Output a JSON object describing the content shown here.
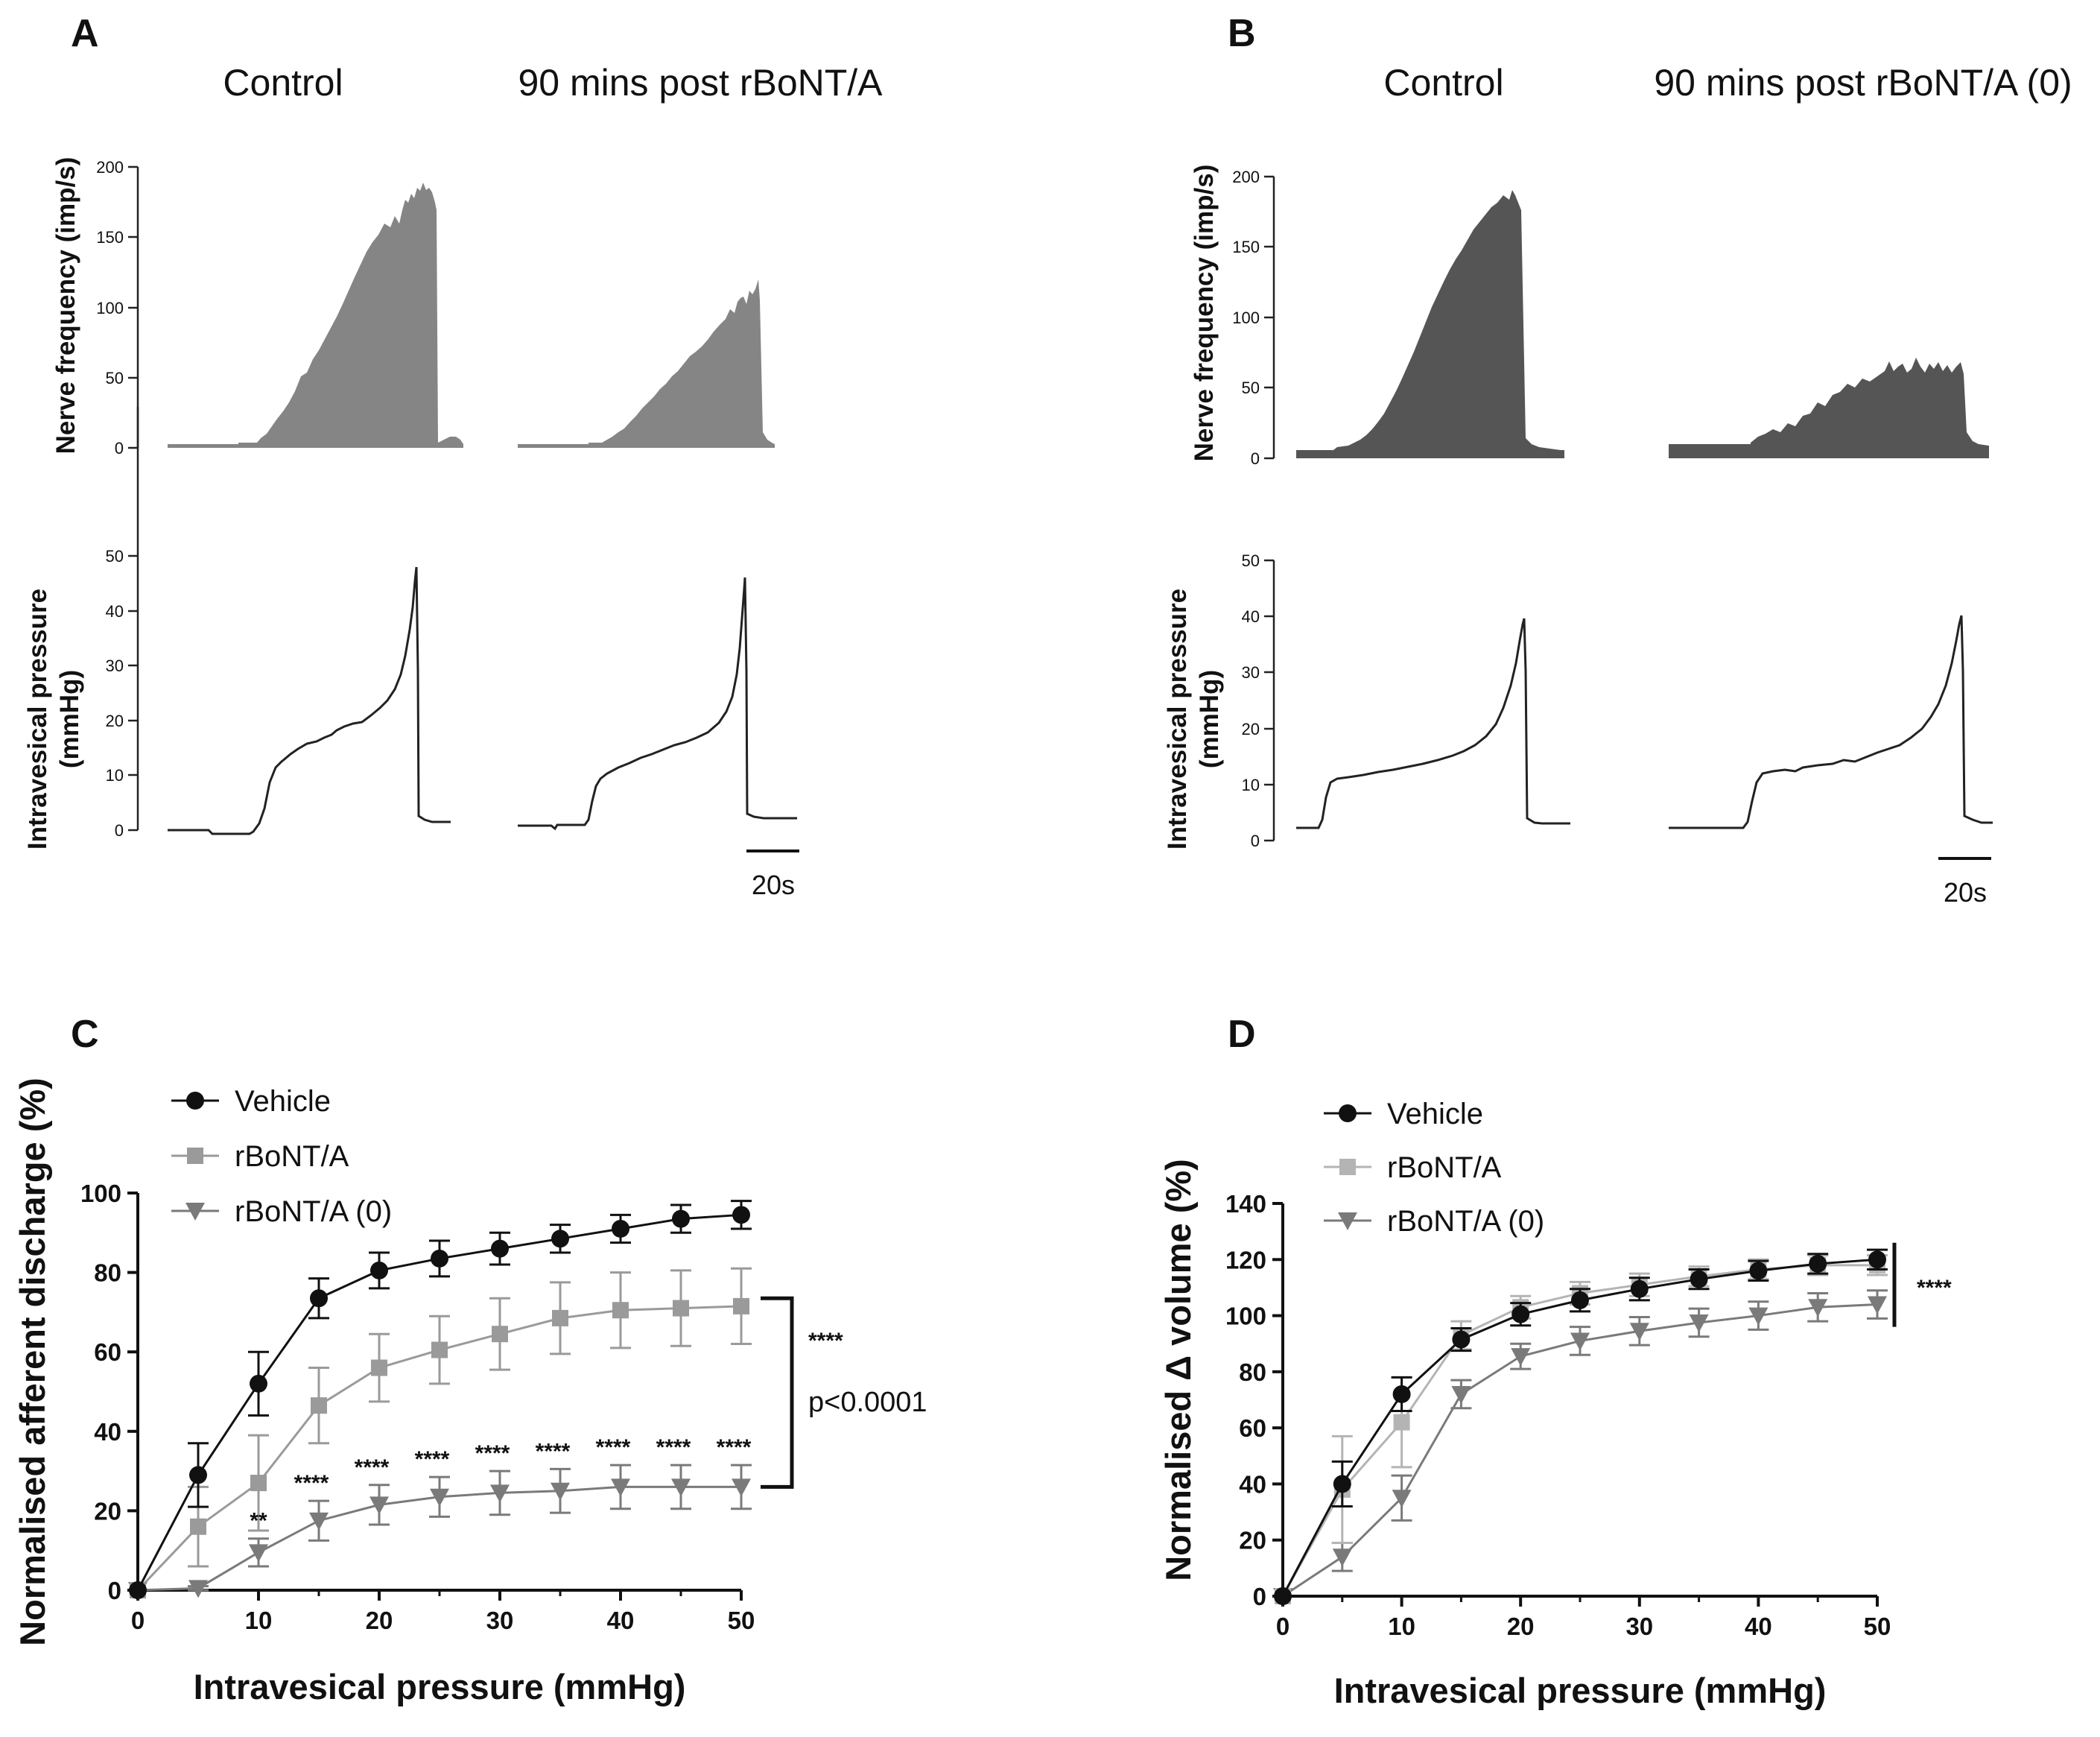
{
  "panels": {
    "A": {
      "label": "A",
      "conditions": [
        "Control",
        "90 mins post rBoNT/A"
      ],
      "nerve_ylabel": "Nerve frequency (imp/s)",
      "pressure_ylabel": "Intravesical pressure",
      "pressure_units": "(mmHg)",
      "nerve_ticks": [
        "0",
        "50",
        "100",
        "150",
        "200"
      ],
      "pressure_ticks": [
        "0",
        "10",
        "20",
        "30",
        "40",
        "50"
      ],
      "scale_bar": "20s"
    },
    "B": {
      "label": "B",
      "conditions": [
        "Control",
        "90 mins post rBoNT/A (0)"
      ],
      "nerve_ylabel": "Nerve frequency (imp/s)",
      "pressure_ylabel": "Intravesical pressure",
      "pressure_units": "(mmHg)",
      "nerve_ticks": [
        "0",
        "50",
        "100",
        "150",
        "200"
      ],
      "pressure_ticks": [
        "0",
        "10",
        "20",
        "30",
        "40",
        "50"
      ],
      "scale_bar": "20s"
    },
    "C": {
      "label": "C"
    },
    "D": {
      "label": "D"
    }
  },
  "chart_data": [
    {
      "id": "C",
      "type": "line",
      "xlabel": "Intravesical pressure (mmHg)",
      "ylabel": "Normalised afferent discharge (%)",
      "xlim": [
        0,
        50
      ],
      "ylim": [
        0,
        100
      ],
      "xticks": [
        "0",
        "10",
        "20",
        "30",
        "40",
        "50"
      ],
      "yticks": [
        "0",
        "20",
        "40",
        "60",
        "80",
        "100"
      ],
      "x": [
        0,
        5,
        10,
        15,
        20,
        25,
        30,
        35,
        40,
        45,
        50
      ],
      "series": [
        {
          "name": "Vehicle",
          "color": "#111111",
          "marker": "circle",
          "values": [
            0,
            29,
            52,
            73.5,
            80.5,
            83.5,
            86,
            88.5,
            91,
            93.5,
            94.5
          ],
          "err": [
            0,
            8,
            8,
            5,
            4.5,
            4.5,
            4,
            3.5,
            3.5,
            3.5,
            3.5
          ]
        },
        {
          "name": "rBoNT/A",
          "color": "#9a9a9a",
          "marker": "square",
          "values": [
            0,
            16,
            27,
            46.5,
            56,
            60.5,
            64.5,
            68.5,
            70.5,
            71,
            71.5
          ],
          "err": [
            0,
            10,
            12,
            9.5,
            8.5,
            8.5,
            9,
            9,
            9.5,
            9.5,
            9.5
          ]
        },
        {
          "name": "rBoNT/A (0)",
          "color": "#7a7a7a",
          "marker": "triangle-down",
          "values": [
            0,
            0.5,
            9.5,
            17.5,
            21.5,
            23.5,
            24.5,
            25,
            26,
            26,
            26
          ],
          "err": [
            0,
            0.5,
            3.5,
            5,
            5,
            5,
            5.5,
            5.5,
            5.5,
            5.5,
            5.5
          ]
        }
      ],
      "point_annotations": [
        {
          "x": 10,
          "text": "**"
        },
        {
          "x": 15,
          "text": "****"
        },
        {
          "x": 20,
          "text": "****"
        },
        {
          "x": 25,
          "text": "****"
        },
        {
          "x": 30,
          "text": "****"
        },
        {
          "x": 35,
          "text": "****"
        },
        {
          "x": 40,
          "text": "****"
        },
        {
          "x": 45,
          "text": "****"
        },
        {
          "x": 50,
          "text": "****"
        }
      ],
      "bracket": {
        "from": 26,
        "to": 73.5,
        "stars": "****",
        "p_text": "p<0.0001"
      }
    },
    {
      "id": "D",
      "type": "line",
      "xlabel": "Intravesical pressure (mmHg)",
      "ylabel": "Normalised Δ volume (%)",
      "xlim": [
        0,
        50
      ],
      "ylim": [
        0,
        140
      ],
      "xticks": [
        "0",
        "10",
        "20",
        "30",
        "40",
        "50"
      ],
      "yticks": [
        "0",
        "20",
        "40",
        "60",
        "80",
        "100",
        "120",
        "140"
      ],
      "x": [
        0,
        5,
        10,
        15,
        20,
        25,
        30,
        35,
        40,
        45,
        50
      ],
      "series": [
        {
          "name": "Vehicle",
          "color": "#111111",
          "marker": "circle",
          "values": [
            0,
            40,
            72,
            91.5,
            100.5,
            105.5,
            109.5,
            113,
            116,
            118.5,
            120
          ],
          "err": [
            0,
            8,
            6,
            4,
            4,
            4,
            4,
            3.5,
            3.5,
            3.5,
            3.5
          ]
        },
        {
          "name": "rBoNT/A",
          "color": "#b4b4b4",
          "marker": "square",
          "values": [
            0,
            38,
            62,
            93,
            103,
            108,
            111,
            114,
            116.5,
            118,
            118
          ],
          "err": [
            0,
            19,
            16,
            5,
            4,
            4,
            4,
            3.5,
            3.5,
            3.5,
            3.5
          ]
        },
        {
          "name": "rBoNT/A (0)",
          "color": "#7a7a7a",
          "marker": "triangle-down",
          "values": [
            0,
            14,
            35,
            72,
            85.5,
            91,
            94.5,
            97.5,
            100,
            103,
            104
          ],
          "err": [
            0,
            5,
            8,
            5,
            4.5,
            5,
            5,
            5,
            5,
            5,
            5
          ]
        }
      ],
      "bracket": {
        "from": 96,
        "to": 126,
        "stars": "****"
      }
    }
  ]
}
